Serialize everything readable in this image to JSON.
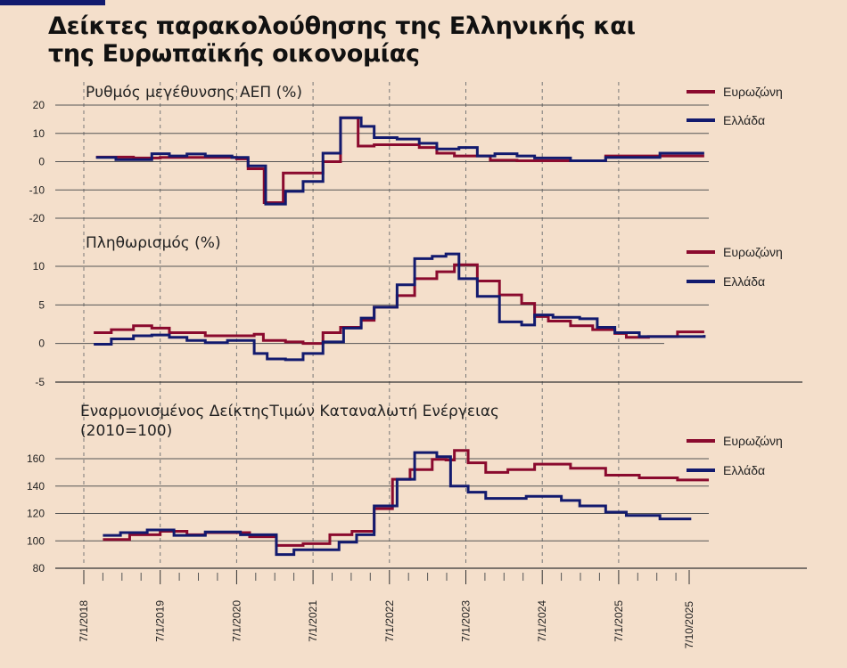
{
  "title_line1": "Δείκτες παρακολούθησης της  Ελληνικής και",
  "title_line2": "της Ευρωπαϊκής οικονομίας",
  "colors": {
    "eurozone": "#8a0a2e",
    "greece": "#121a6e",
    "background": "#f4dfcb"
  },
  "x_axis": {
    "ticks": [
      {
        "label": "7/1/2018",
        "year": 2018.5
      },
      {
        "label": "7/1/2019",
        "year": 2019.5
      },
      {
        "label": "7/1/2020",
        "year": 2020.5
      },
      {
        "label": "7/1/2021",
        "year": 2021.5
      },
      {
        "label": "7/1/2022",
        "year": 2022.5
      },
      {
        "label": "7/1/2023",
        "year": 2023.5
      },
      {
        "label": "7/1/2024",
        "year": 2024.5
      },
      {
        "label": "7/1/2025",
        "year": 2025.5
      },
      {
        "label": "7/10/2025",
        "year": 2026.42
      }
    ]
  },
  "chart_data": [
    {
      "type": "line",
      "step": true,
      "title": "Ρυθμός μεγέθυνσης ΑΕΠ (%)",
      "ylim": [
        -20,
        20
      ],
      "yticks": [
        20,
        10,
        0,
        -10,
        -20
      ],
      "grid": true,
      "legend": "right",
      "series": [
        {
          "name": "Ευρωζώνη",
          "points": [
            [
              2018.66,
              1.6
            ],
            [
              2019.15,
              1.3
            ],
            [
              2019.5,
              1.5
            ],
            [
              2020.5,
              1
            ],
            [
              2020.65,
              -2.5
            ],
            [
              2020.86,
              -14.5
            ],
            [
              2021.11,
              -4
            ],
            [
              2021.63,
              0
            ],
            [
              2021.86,
              15.5
            ],
            [
              2022.09,
              5.5
            ],
            [
              2022.3,
              6
            ],
            [
              2022.89,
              5
            ],
            [
              2023.12,
              3
            ],
            [
              2023.35,
              2
            ],
            [
              2023.82,
              0.5
            ],
            [
              2024.17,
              0.3
            ],
            [
              2025.33,
              2
            ],
            [
              2026.62,
              2
            ]
          ]
        },
        {
          "name": "Ελλάδα",
          "points": [
            [
              2018.66,
              1.5
            ],
            [
              2018.92,
              0.7
            ],
            [
              2019.39,
              2.8
            ],
            [
              2019.62,
              2
            ],
            [
              2019.85,
              2.7
            ],
            [
              2020.09,
              2
            ],
            [
              2020.44,
              1.5
            ],
            [
              2020.65,
              -1.5
            ],
            [
              2020.88,
              -15
            ],
            [
              2021.14,
              -10.5
            ],
            [
              2021.37,
              -7
            ],
            [
              2021.63,
              3
            ],
            [
              2021.86,
              15.5
            ],
            [
              2022.13,
              12.5
            ],
            [
              2022.3,
              8.5
            ],
            [
              2022.6,
              8
            ],
            [
              2022.89,
              6.5
            ],
            [
              2023.12,
              4.5
            ],
            [
              2023.41,
              5
            ],
            [
              2023.65,
              2
            ],
            [
              2023.88,
              2.8
            ],
            [
              2024.17,
              2
            ],
            [
              2024.4,
              1.3
            ],
            [
              2024.87,
              0.3
            ],
            [
              2025.33,
              1.5
            ],
            [
              2026.04,
              3
            ],
            [
              2026.62,
              3
            ]
          ]
        }
      ]
    },
    {
      "type": "line",
      "step": true,
      "title": "Πληθωρισμός (%)",
      "ylim": [
        -5,
        10
      ],
      "yticks": [
        10,
        5,
        0,
        -5
      ],
      "grid": true,
      "legend": "right",
      "series": [
        {
          "name": "Ευρωζώνη",
          "points": [
            [
              2018.63,
              1.4
            ],
            [
              2018.86,
              1.8
            ],
            [
              2019.15,
              2.3
            ],
            [
              2019.39,
              2
            ],
            [
              2019.62,
              1.4
            ],
            [
              2020.09,
              1
            ],
            [
              2020.73,
              1.2
            ],
            [
              2020.85,
              0.4
            ],
            [
              2021.14,
              0.2
            ],
            [
              2021.37,
              0
            ],
            [
              2021.63,
              1.4
            ],
            [
              2021.86,
              2.1
            ],
            [
              2022.13,
              3
            ],
            [
              2022.3,
              4.7
            ],
            [
              2022.6,
              6.2
            ],
            [
              2022.83,
              8.4
            ],
            [
              2023.12,
              9.3
            ],
            [
              2023.35,
              10.2
            ],
            [
              2023.65,
              8.1
            ],
            [
              2023.94,
              6.3
            ],
            [
              2024.23,
              5.2
            ],
            [
              2024.4,
              3.5
            ],
            [
              2024.58,
              2.9
            ],
            [
              2024.87,
              2.3
            ],
            [
              2025.16,
              1.8
            ],
            [
              2025.45,
              1.3
            ],
            [
              2025.6,
              0.8
            ],
            [
              2025.89,
              0.9
            ],
            [
              2026.27,
              1.5
            ],
            [
              2026.62,
              1.5
            ]
          ]
        },
        {
          "name": "Ελλάδα",
          "points": [
            [
              2018.63,
              -0.1
            ],
            [
              2018.86,
              0.6
            ],
            [
              2019.15,
              1
            ],
            [
              2019.39,
              1.1
            ],
            [
              2019.62,
              0.8
            ],
            [
              2019.85,
              0.4
            ],
            [
              2020.09,
              0.1
            ],
            [
              2020.38,
              0.4
            ],
            [
              2020.73,
              -1.3
            ],
            [
              2020.9,
              -2
            ],
            [
              2021.14,
              -2.1
            ],
            [
              2021.37,
              -1.3
            ],
            [
              2021.63,
              0.2
            ],
            [
              2021.9,
              2
            ],
            [
              2022.13,
              3.3
            ],
            [
              2022.3,
              4.7
            ],
            [
              2022.6,
              7.6
            ],
            [
              2022.83,
              11
            ],
            [
              2023.06,
              11.3
            ],
            [
              2023.24,
              11.6
            ],
            [
              2023.41,
              8.4
            ],
            [
              2023.65,
              6.1
            ],
            [
              2023.94,
              2.8
            ],
            [
              2024.23,
              2.4
            ],
            [
              2024.4,
              3.7
            ],
            [
              2024.64,
              3.4
            ],
            [
              2024.99,
              3.2
            ],
            [
              2025.22,
              2.1
            ],
            [
              2025.45,
              1.4
            ],
            [
              2025.77,
              0.9
            ],
            [
              2026.62,
              1.1
            ]
          ]
        }
      ]
    },
    {
      "type": "line",
      "step": true,
      "title": "Εναρμονισμένος ΔείκτηςΤιμών Καταναλωτή Ενέργειας",
      "subtitle": "(2010=100)",
      "ylim": [
        80,
        160
      ],
      "yticks": [
        160,
        140,
        120,
        100,
        80
      ],
      "grid": true,
      "legend": "right",
      "series": [
        {
          "name": "Ευρωζώνη",
          "points": [
            [
              2018.75,
              101
            ],
            [
              2019.1,
              104.5
            ],
            [
              2019.5,
              107
            ],
            [
              2019.85,
              104.5
            ],
            [
              2020.09,
              106
            ],
            [
              2020.67,
              103
            ],
            [
              2021.02,
              96.7
            ],
            [
              2021.37,
              98
            ],
            [
              2021.72,
              104.5
            ],
            [
              2022.01,
              107
            ],
            [
              2022.3,
              123.5
            ],
            [
              2022.54,
              145
            ],
            [
              2022.77,
              152
            ],
            [
              2023.06,
              159.5
            ],
            [
              2023.24,
              159
            ],
            [
              2023.35,
              166
            ],
            [
              2023.53,
              157
            ],
            [
              2023.76,
              150
            ],
            [
              2024.05,
              152
            ],
            [
              2024.4,
              156
            ],
            [
              2024.87,
              153
            ],
            [
              2025.33,
              148
            ],
            [
              2025.77,
              146
            ],
            [
              2026.27,
              144.5
            ],
            [
              2026.68,
              144.5
            ]
          ]
        },
        {
          "name": "Ελλάδα",
          "points": [
            [
              2018.75,
              104
            ],
            [
              2018.98,
              106
            ],
            [
              2019.33,
              108
            ],
            [
              2019.68,
              104
            ],
            [
              2020.09,
              106.5
            ],
            [
              2020.55,
              104.5
            ],
            [
              2021.02,
              90
            ],
            [
              2021.25,
              93.5
            ],
            [
              2021.84,
              99
            ],
            [
              2022.07,
              104.5
            ],
            [
              2022.3,
              125.5
            ],
            [
              2022.6,
              145
            ],
            [
              2022.83,
              164.5
            ],
            [
              2023.12,
              161.5
            ],
            [
              2023.3,
              140
            ],
            [
              2023.53,
              135.5
            ],
            [
              2023.76,
              131
            ],
            [
              2024.29,
              132.5
            ],
            [
              2024.75,
              129.5
            ],
            [
              2024.99,
              125.5
            ],
            [
              2025.33,
              121
            ],
            [
              2025.6,
              118.5
            ],
            [
              2026.04,
              116
            ],
            [
              2026.45,
              116
            ]
          ]
        }
      ]
    }
  ]
}
